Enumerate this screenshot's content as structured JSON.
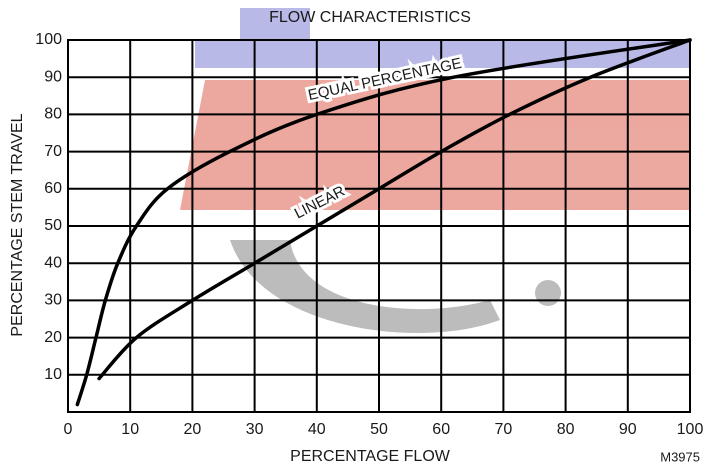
{
  "chart_data": {
    "type": "line",
    "title": "FLOW CHARACTERISTICS",
    "x_label": "PERCENTAGE FLOW",
    "y_label": "PERCENTAGE STEM TRAVEL",
    "annotation": "M3975",
    "xlim": [
      0,
      100
    ],
    "ylim": [
      0,
      100
    ],
    "xticks": [
      0,
      10,
      20,
      30,
      40,
      50,
      60,
      70,
      80,
      90,
      100
    ],
    "yticks": [
      10,
      20,
      30,
      40,
      50,
      60,
      70,
      80,
      90,
      100
    ],
    "grid": true,
    "series": [
      {
        "name": "EQUAL PERCENTAGE",
        "color": "#000000",
        "x": [
          1.5,
          3,
          4.5,
          6,
          8,
          11,
          16,
          26,
          40,
          62,
          100
        ],
        "values": [
          2,
          10,
          20,
          30,
          40,
          50,
          60,
          70,
          80,
          90,
          100
        ]
      },
      {
        "name": "LINEAR",
        "color": "#000000",
        "x": [
          5,
          11,
          20,
          30,
          40,
          50,
          60,
          71,
          84,
          100
        ],
        "values": [
          9,
          20,
          30,
          40,
          50,
          60,
          70,
          80,
          90,
          100
        ]
      }
    ]
  }
}
